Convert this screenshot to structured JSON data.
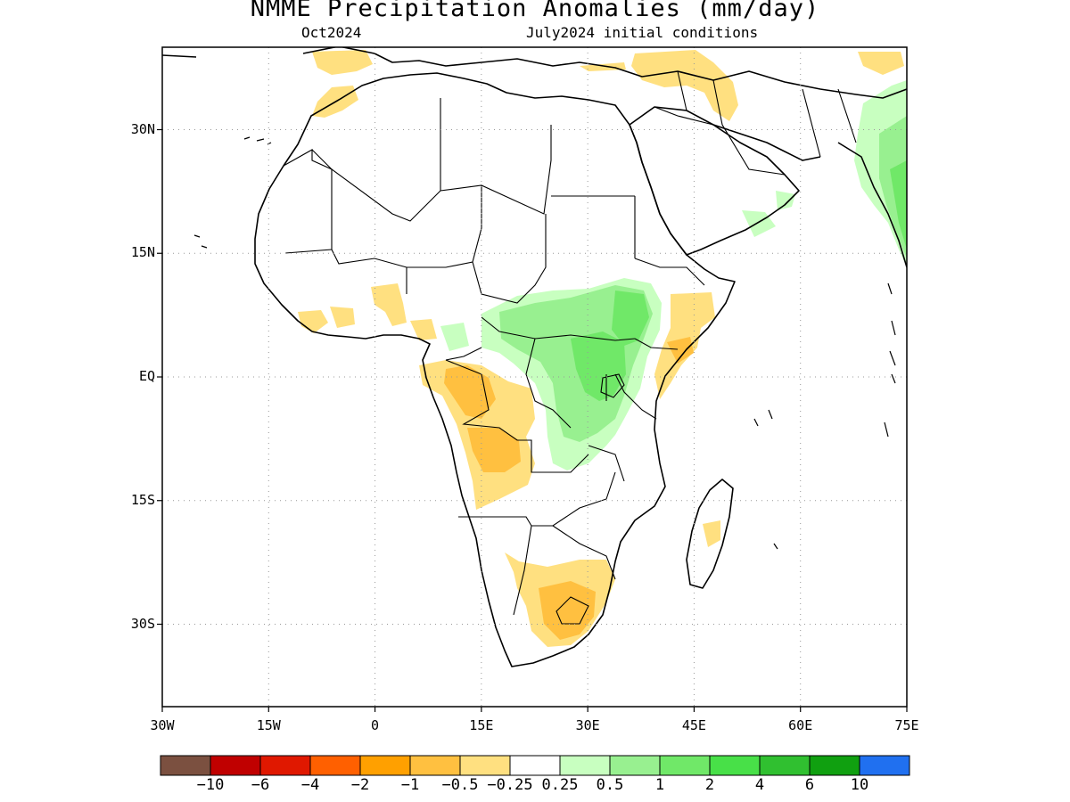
{
  "header": {
    "title": "NMME Precipitation Anomalies (mm/day)",
    "valid_month": "Oct2024",
    "initial_conditions": "July2024 initial conditions"
  },
  "map": {
    "lon_range": [
      -30,
      75
    ],
    "lat_range": [
      -40,
      40
    ],
    "lat_ticks": [
      {
        "value": 30,
        "label": "30N"
      },
      {
        "value": 15,
        "label": "15N"
      },
      {
        "value": 0,
        "label": "EQ"
      },
      {
        "value": -15,
        "label": "15S"
      },
      {
        "value": -30,
        "label": "30S"
      }
    ],
    "lon_ticks": [
      {
        "value": -30,
        "label": "30W"
      },
      {
        "value": -15,
        "label": "15W"
      },
      {
        "value": 0,
        "label": "0"
      },
      {
        "value": 15,
        "label": "15E"
      },
      {
        "value": 30,
        "label": "30E"
      },
      {
        "value": 45,
        "label": "45E"
      },
      {
        "value": 60,
        "label": "60E"
      },
      {
        "value": 75,
        "label": "75E"
      }
    ],
    "grid": "dotted"
  },
  "colorbar": {
    "colors": [
      "#7b5040",
      "#c00000",
      "#e01800",
      "#ff6000",
      "#ffa000",
      "#ffc040",
      "#ffe080",
      "#ffffff",
      "#c8ffc0",
      "#98f090",
      "#70e868",
      "#48e048",
      "#30c030",
      "#10a010",
      "#2070f0"
    ],
    "labels": [
      "−10",
      "−6",
      "−4",
      "−2",
      "−1",
      "−0.5",
      "−0.25",
      "0.25",
      "0.5",
      "1",
      "2",
      "4",
      "6",
      "10"
    ]
  }
}
